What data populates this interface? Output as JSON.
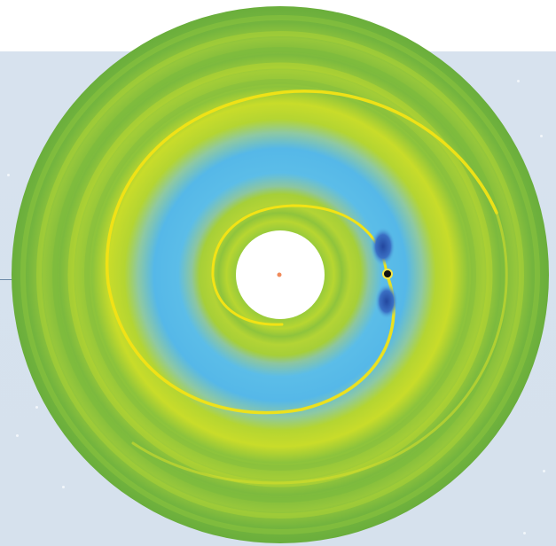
{
  "figure": {
    "colors": {
      "background": "#d7e2ee",
      "disc_base": "#6fb33b",
      "ring_band": "#7fbf3f",
      "spiral_wake": "#f2e315",
      "gap": "#5bbde8",
      "gap_deep": "#2f5db4",
      "planet": "#111111",
      "star": "#f08a5a",
      "pointer_line": "#6a88a6"
    },
    "icons": {
      "planet": "planet-dot-icon",
      "central_star": "central-star-icon"
    }
  }
}
